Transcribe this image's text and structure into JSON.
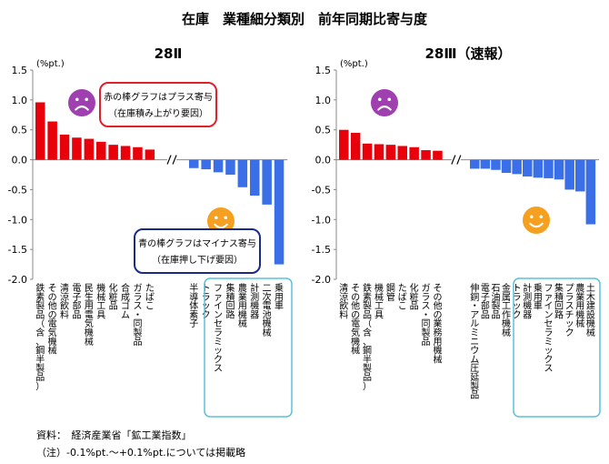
{
  "page": {
    "title": "在庫　業種細分類別　前年同期比寄与度",
    "source": "資料：　経済産業省「鉱工業指数」",
    "note": "（注）-0.1%pt.～+0.1%pt.については掲載略"
  },
  "colors": {
    "positive": "#e8000b",
    "negative": "#3b6fe8",
    "callout_red_border": "#e0202a",
    "callout_blue_border": "#1a2a8a",
    "highlight_box": "#5bc0de",
    "sad_face": "#a040b0",
    "happy_face": "#f5a020"
  },
  "chart_data": [
    {
      "type": "bar",
      "title": "28Ⅱ",
      "ylabel": "(%pt.)",
      "ylim": [
        -2.0,
        1.5
      ],
      "yticks": [
        "1.5",
        "1.0",
        "0.5",
        "0.0",
        "-0.5",
        "-1.0",
        "-1.5",
        "-2.0"
      ],
      "grid": false,
      "axis_break": true,
      "positive_categories": [
        "鉄素製品（含、鋼半製品）",
        "その他の電気機械",
        "清涼飲料",
        "電子部品",
        "民生用電気機械",
        "機械工具",
        "化粧品",
        "合成ゴム",
        "ガラス・同製品",
        "たばこ"
      ],
      "positive_values": [
        0.96,
        0.64,
        0.42,
        0.37,
        0.35,
        0.3,
        0.25,
        0.23,
        0.21,
        0.17
      ],
      "negative_categories": [
        "半導体素子",
        "トラック",
        "ファインセラミックス",
        "集積回路",
        "農業用機械",
        "計測機器",
        "二次電池機械",
        "乗用車"
      ],
      "negative_values": [
        -0.14,
        -0.16,
        -0.21,
        -0.25,
        -0.46,
        -0.6,
        -0.75,
        -1.75
      ],
      "callouts": {
        "red_line1": "赤の棒グラフはプラス寄与",
        "red_line2": "（在庫積み上がり要因）",
        "blue_line1": "青の棒グラフはマイナス寄与",
        "blue_line2": "（在庫押し下げ要因）"
      }
    },
    {
      "type": "bar",
      "title": "28Ⅲ（速報）",
      "ylabel": "(%pt.)",
      "ylim": [
        -2.0,
        1.5
      ],
      "yticks": [
        "1.5",
        "1.0",
        "0.5",
        "0.0",
        "-0.5",
        "-1.0",
        "-1.5",
        "-2.0"
      ],
      "grid": false,
      "axis_break": true,
      "positive_categories": [
        "清涼飲料",
        "その他の電気機械",
        "鉄素製品（含、鋼半製品）",
        "機械工具",
        "鋼管",
        "たばこ",
        "化粧品",
        "ガラス・同製品",
        "その他の業務用機械"
      ],
      "positive_values": [
        0.5,
        0.45,
        0.27,
        0.26,
        0.25,
        0.23,
        0.21,
        0.16,
        0.15
      ],
      "negative_categories": [
        "伸銅・アルミニウム圧延製品",
        "電子部品",
        "石油製品",
        "金属工作機械",
        "トラック",
        "計測機器",
        "乗用車",
        "ファインセラミックス",
        "集積回路",
        "プラスチック",
        "農業用機械",
        "土木建設機械"
      ],
      "negative_values": [
        -0.15,
        -0.15,
        -0.17,
        -0.22,
        -0.24,
        -0.28,
        -0.3,
        -0.31,
        -0.33,
        -0.5,
        -0.53,
        -1.08
      ]
    }
  ]
}
